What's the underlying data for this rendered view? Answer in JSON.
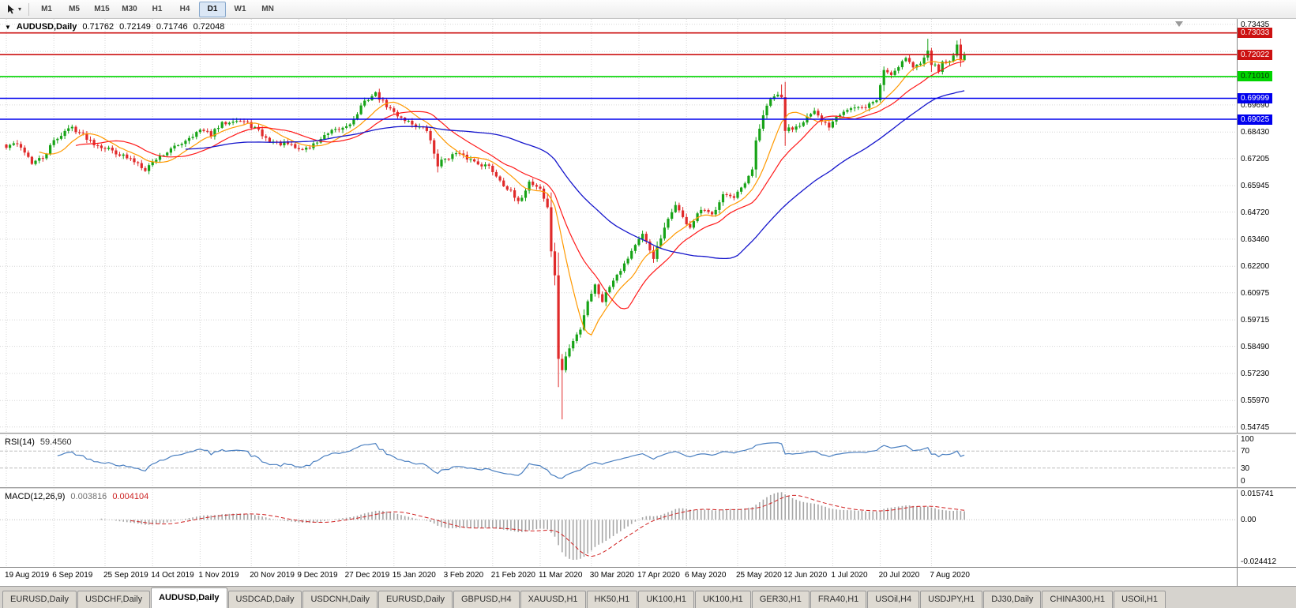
{
  "toolbar": {
    "timeframes": [
      {
        "label": "M1"
      },
      {
        "label": "M5"
      },
      {
        "label": "M15"
      },
      {
        "label": "M30"
      },
      {
        "label": "H1"
      },
      {
        "label": "H4"
      },
      {
        "label": "D1",
        "active": true
      },
      {
        "label": "W1"
      },
      {
        "label": "MN"
      }
    ]
  },
  "price_pane": {
    "title": {
      "symbol": "AUDUSD,Daily",
      "open": "0.71762",
      "high": "0.72149",
      "low": "0.71746",
      "close": "0.72048"
    },
    "y_axis_labels": [
      {
        "text": "0.73435",
        "value": 0.73435
      },
      {
        "text": "0.69690",
        "value": 0.6969
      },
      {
        "text": "0.68430",
        "value": 0.6843
      },
      {
        "text": "0.67205",
        "value": 0.67205
      },
      {
        "text": "0.65945",
        "value": 0.65945
      },
      {
        "text": "0.64720",
        "value": 0.6472
      },
      {
        "text": "0.63460",
        "value": 0.6346
      },
      {
        "text": "0.62200",
        "value": 0.622
      },
      {
        "text": "0.60975",
        "value": 0.60975
      },
      {
        "text": "0.59715",
        "value": 0.59715
      },
      {
        "text": "0.58490",
        "value": 0.5849
      },
      {
        "text": "0.57230",
        "value": 0.5723
      },
      {
        "text": "0.55970",
        "value": 0.5597
      },
      {
        "text": "0.54745",
        "value": 0.54745
      }
    ],
    "horizontal_lines": [
      {
        "label": "0.73033",
        "value": 0.73033,
        "color": "#cc1111",
        "text_color": "#ffffff"
      },
      {
        "label": "0.72022",
        "value": 0.72022,
        "color": "#cc1111",
        "text_color": "#ffffff"
      },
      {
        "label": "0.71010",
        "value": 0.7101,
        "color": "#00d400",
        "text_color": "#063006"
      },
      {
        "label": "0.69999",
        "value": 0.69999,
        "color": "#0000ee",
        "text_color": "#ffffff"
      },
      {
        "label": "0.69025",
        "value": 0.69025,
        "color": "#0000ee",
        "text_color": "#ffffff"
      }
    ]
  },
  "rsi_panel": {
    "label": "RSI(14)",
    "value": "59.4560",
    "axis_labels": [
      {
        "text": "100",
        "value": 100
      },
      {
        "text": "70",
        "value": 70
      },
      {
        "text": "30",
        "value": 30
      },
      {
        "text": "0",
        "value": 0
      }
    ],
    "dashed_levels": [
      70,
      30
    ]
  },
  "macd_panel": {
    "label": "MACD(12,26,9)",
    "value_main": "0.003816",
    "value_signal": "0.004104",
    "axis_labels": [
      {
        "text": "0.015741",
        "value": 0.015741
      },
      {
        "text": "0.00",
        "value": 0
      },
      {
        "text": "-0.024412",
        "value": -0.024412
      }
    ]
  },
  "time_axis": {
    "labels": [
      "19 Aug 2019",
      "6 Sep 2019",
      "25 Sep 2019",
      "14 Oct 2019",
      "1 Nov 2019",
      "20 Nov 2019",
      "9 Dec 2019",
      "27 Dec 2019",
      "15 Jan 2020",
      "3 Feb 2020",
      "21 Feb 2020",
      "11 Mar 2020",
      "30 Mar 2020",
      "17 Apr 2020",
      "6 May 2020",
      "25 May 2020",
      "12 Jun 2020",
      "1 Jul 2020",
      "20 Jul 2020",
      "7 Aug 2020"
    ]
  },
  "tabs": [
    {
      "label": "EURUSD,Daily"
    },
    {
      "label": "USDCHF,Daily"
    },
    {
      "label": "AUDUSD,Daily",
      "active": true
    },
    {
      "label": "USDCAD,Daily"
    },
    {
      "label": "USDCNH,Daily"
    },
    {
      "label": "EURUSD,Daily"
    },
    {
      "label": "GBPUSD,H4"
    },
    {
      "label": "XAUUSD,H1"
    },
    {
      "label": "HK50,H1"
    },
    {
      "label": "UK100,H1"
    },
    {
      "label": "UK100,H1"
    },
    {
      "label": "GER30,H1"
    },
    {
      "label": "FRA40,H1"
    },
    {
      "label": "USOil,H4"
    },
    {
      "label": "USDJPY,H1"
    },
    {
      "label": "DJ30,Daily"
    },
    {
      "label": "CHINA300,H1"
    },
    {
      "label": "USOil,H1"
    }
  ],
  "chart_data": {
    "type": "candlestick",
    "symbol": "AUDUSD",
    "period": "Daily",
    "title": "AUDUSD,Daily",
    "last_ohlc": {
      "open": 0.71762,
      "high": 0.72149,
      "low": 0.71746,
      "close": 0.72048
    },
    "num_candles": 263,
    "price_axis": {
      "max": 0.7368,
      "min": 0.5448
    },
    "x_tick_indices": [
      0,
      13,
      27,
      40,
      53,
      67,
      80,
      93,
      106,
      120,
      133,
      146,
      160,
      173,
      186,
      200,
      213,
      226,
      239,
      253
    ],
    "y_gridlines": [
      0.73435,
      0.72175,
      0.7095,
      0.6969,
      0.6843,
      0.67205,
      0.65945,
      0.6472,
      0.6346,
      0.622,
      0.60975,
      0.59715,
      0.5849,
      0.5723,
      0.5597,
      0.54745
    ],
    "anchors_close": [
      [
        0,
        0.677
      ],
      [
        2,
        0.6792
      ],
      [
        5,
        0.6755
      ],
      [
        7,
        0.67
      ],
      [
        10,
        0.6722
      ],
      [
        13,
        0.68
      ],
      [
        16,
        0.6848
      ],
      [
        18,
        0.6865
      ],
      [
        21,
        0.683
      ],
      [
        24,
        0.6792
      ],
      [
        27,
        0.6772
      ],
      [
        30,
        0.675
      ],
      [
        33,
        0.6722
      ],
      [
        36,
        0.67
      ],
      [
        38,
        0.6672
      ],
      [
        41,
        0.672
      ],
      [
        44,
        0.6752
      ],
      [
        47,
        0.6782
      ],
      [
        50,
        0.682
      ],
      [
        53,
        0.685
      ],
      [
        56,
        0.6832
      ],
      [
        59,
        0.688
      ],
      [
        62,
        0.6902
      ],
      [
        65,
        0.689
      ],
      [
        68,
        0.6862
      ],
      [
        71,
        0.6812
      ],
      [
        74,
        0.6792
      ],
      [
        77,
        0.6786
      ],
      [
        80,
        0.6762
      ],
      [
        83,
        0.6772
      ],
      [
        86,
        0.6812
      ],
      [
        89,
        0.6842
      ],
      [
        92,
        0.6862
      ],
      [
        95,
        0.69
      ],
      [
        97,
        0.696
      ],
      [
        99,
        0.7
      ],
      [
        101,
        0.7021
      ],
      [
        103,
        0.6982
      ],
      [
        106,
        0.6932
      ],
      [
        109,
        0.6902
      ],
      [
        112,
        0.6872
      ],
      [
        115,
        0.6852
      ],
      [
        118,
        0.6692
      ],
      [
        120,
        0.6722
      ],
      [
        123,
        0.6742
      ],
      [
        126,
        0.6722
      ],
      [
        129,
        0.67
      ],
      [
        132,
        0.6682
      ],
      [
        135,
        0.6622
      ],
      [
        138,
        0.6562
      ],
      [
        140,
        0.6512
      ],
      [
        143,
        0.6612
      ],
      [
        146,
        0.6582
      ],
      [
        148,
        0.649
      ],
      [
        149,
        0.6292
      ],
      [
        150,
        0.6182
      ],
      [
        151,
        0.5782
      ],
      [
        152,
        0.5742
      ],
      [
        153,
        0.5802
      ],
      [
        155,
        0.5872
      ],
      [
        157,
        0.5932
      ],
      [
        159,
        0.6062
      ],
      [
        161,
        0.6132
      ],
      [
        163,
        0.6062
      ],
      [
        166,
        0.6162
      ],
      [
        169,
        0.6232
      ],
      [
        172,
        0.6322
      ],
      [
        174,
        0.6362
      ],
      [
        177,
        0.6262
      ],
      [
        180,
        0.6392
      ],
      [
        183,
        0.6512
      ],
      [
        185,
        0.6442
      ],
      [
        187,
        0.6402
      ],
      [
        190,
        0.6482
      ],
      [
        193,
        0.6456
      ],
      [
        196,
        0.6562
      ],
      [
        199,
        0.6532
      ],
      [
        202,
        0.6602
      ],
      [
        204,
        0.6662
      ],
      [
        205,
        0.6802
      ],
      [
        207,
        0.6922
      ],
      [
        209,
        0.6992
      ],
      [
        210,
        0.7012
      ],
      [
        212,
        0.7002
      ],
      [
        213,
        0.6852
      ],
      [
        215,
        0.6862
      ],
      [
        217,
        0.6882
      ],
      [
        219,
        0.6912
      ],
      [
        221,
        0.6932
      ],
      [
        223,
        0.6892
      ],
      [
        225,
        0.6872
      ],
      [
        227,
        0.6922
      ],
      [
        229,
        0.6942
      ],
      [
        231,
        0.6952
      ],
      [
        234,
        0.6952
      ],
      [
        236,
        0.6972
      ],
      [
        238,
        0.6992
      ],
      [
        240,
        0.7132
      ],
      [
        242,
        0.7112
      ],
      [
        244,
        0.7152
      ],
      [
        246,
        0.7192
      ],
      [
        248,
        0.7142
      ],
      [
        250,
        0.7162
      ],
      [
        252,
        0.7232
      ],
      [
        253,
        0.7162
      ],
      [
        255,
        0.7132
      ],
      [
        256,
        0.7162
      ],
      [
        258,
        0.7172
      ],
      [
        260,
        0.7242
      ],
      [
        261,
        0.71762
      ],
      [
        262,
        0.72048
      ]
    ],
    "wick_overrides": {
      "101": {
        "high": 0.7032
      },
      "152": {
        "low": 0.551
      },
      "212": {
        "high": 0.7064
      },
      "252": {
        "high": 0.7276
      },
      "260": {
        "high": 0.7268
      },
      "262": {
        "high": 0.72149,
        "low": 0.71746
      }
    },
    "synth": {
      "seed": 42,
      "noise": 0.0022
    },
    "overlays": [
      {
        "name": "SMA10",
        "period": 10,
        "color": "#ff9900"
      },
      {
        "name": "SMA20",
        "period": 20,
        "color": "#ff1a1a"
      },
      {
        "name": "SMA50",
        "period": 50,
        "color": "#1616cc"
      }
    ],
    "rsi": {
      "period": 14,
      "color": "#4a7fc0",
      "range": [
        0,
        100
      ]
    },
    "macd": {
      "fast": 12,
      "slow": 26,
      "signal": 9,
      "hist_color": "#a6a6a6",
      "signal_color": "#d02020",
      "axis_max": 0.017,
      "axis_min": -0.0265
    },
    "colors": {
      "up": "#17a317",
      "down": "#e02a2a",
      "grid": "#d6d6d6"
    }
  }
}
